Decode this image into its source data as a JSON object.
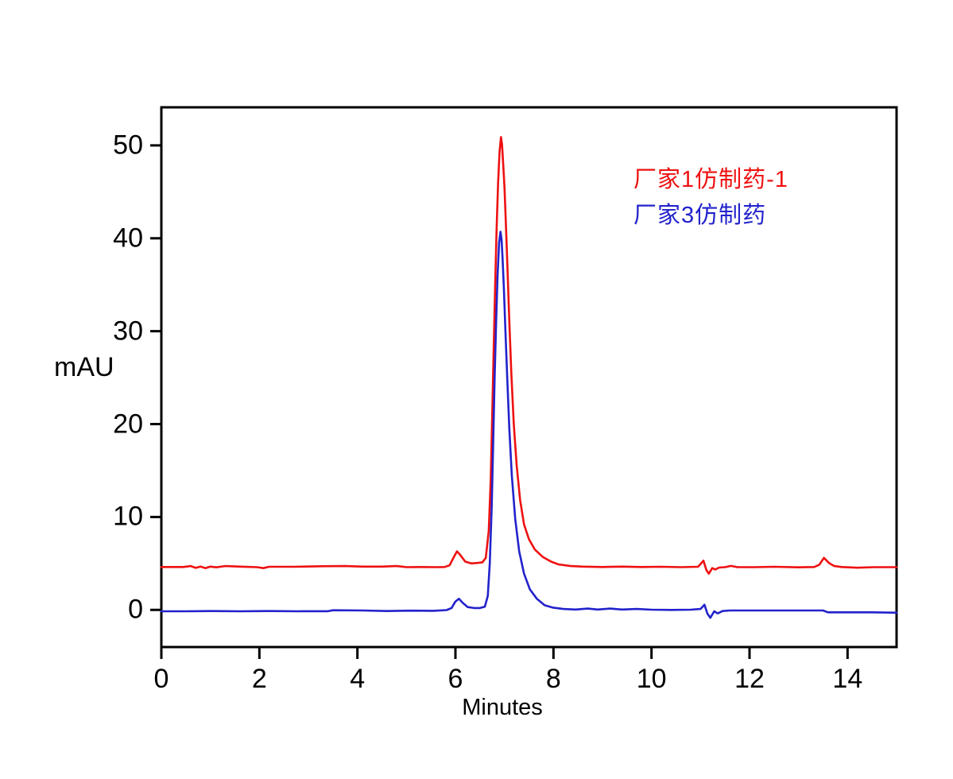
{
  "colors": {
    "background": "#ffffff",
    "axis": "#000000",
    "series1": "#ee1111",
    "series2": "#2222cc"
  },
  "chart_data": {
    "type": "line",
    "title": "",
    "xlabel": "Minutes",
    "ylabel": "mAU",
    "xlim": [
      0,
      15
    ],
    "ylim": [
      -4.0,
      54.1
    ],
    "x_ticks": [
      0,
      2,
      4,
      6,
      8,
      10,
      12,
      14
    ],
    "y_ticks": [
      0,
      10,
      20,
      30,
      40,
      50
    ],
    "grid": false,
    "legend_position": "upper-right-inside",
    "series": [
      {
        "name": "厂家1仿制药-1",
        "color": "#ee1111",
        "baseline": 4.6,
        "main_peak": {
          "time_min": 6.93,
          "height_mau": 50.9
        },
        "points": [
          [
            0,
            4.62
          ],
          [
            0.45,
            4.62
          ],
          [
            0.6,
            4.72
          ],
          [
            0.7,
            4.52
          ],
          [
            0.8,
            4.66
          ],
          [
            0.9,
            4.5
          ],
          [
            1.0,
            4.66
          ],
          [
            1.12,
            4.58
          ],
          [
            1.3,
            4.72
          ],
          [
            1.6,
            4.66
          ],
          [
            1.95,
            4.6
          ],
          [
            2.08,
            4.5
          ],
          [
            2.2,
            4.64
          ],
          [
            2.7,
            4.64
          ],
          [
            3.3,
            4.7
          ],
          [
            3.75,
            4.72
          ],
          [
            4.1,
            4.66
          ],
          [
            4.5,
            4.66
          ],
          [
            4.8,
            4.72
          ],
          [
            5.0,
            4.6
          ],
          [
            5.3,
            4.62
          ],
          [
            5.6,
            4.6
          ],
          [
            5.78,
            4.62
          ],
          [
            5.88,
            4.8
          ],
          [
            5.97,
            5.7
          ],
          [
            6.03,
            6.3
          ],
          [
            6.1,
            5.9
          ],
          [
            6.2,
            5.2
          ],
          [
            6.32,
            5.0
          ],
          [
            6.45,
            5.05
          ],
          [
            6.55,
            5.12
          ],
          [
            6.62,
            5.6
          ],
          [
            6.68,
            8.5
          ],
          [
            6.72,
            14
          ],
          [
            6.75,
            21
          ],
          [
            6.78,
            28
          ],
          [
            6.81,
            35
          ],
          [
            6.84,
            41
          ],
          [
            6.87,
            46
          ],
          [
            6.9,
            49.3
          ],
          [
            6.93,
            50.9
          ],
          [
            6.95,
            50.1
          ],
          [
            6.97,
            48.4
          ],
          [
            7.0,
            45.5
          ],
          [
            7.03,
            41.5
          ],
          [
            7.06,
            37
          ],
          [
            7.1,
            31
          ],
          [
            7.14,
            25.5
          ],
          [
            7.19,
            20
          ],
          [
            7.25,
            15.5
          ],
          [
            7.32,
            11.8
          ],
          [
            7.4,
            9.2
          ],
          [
            7.5,
            7.6
          ],
          [
            7.62,
            6.5
          ],
          [
            7.78,
            5.7
          ],
          [
            7.95,
            5.2
          ],
          [
            8.1,
            4.9
          ],
          [
            8.35,
            4.72
          ],
          [
            8.6,
            4.66
          ],
          [
            9.0,
            4.62
          ],
          [
            9.4,
            4.66
          ],
          [
            9.8,
            4.62
          ],
          [
            10.2,
            4.64
          ],
          [
            10.6,
            4.6
          ],
          [
            10.95,
            4.64
          ],
          [
            11.06,
            5.3
          ],
          [
            11.12,
            4.3
          ],
          [
            11.17,
            3.9
          ],
          [
            11.24,
            4.5
          ],
          [
            11.3,
            4.35
          ],
          [
            11.38,
            4.56
          ],
          [
            11.5,
            4.6
          ],
          [
            11.62,
            4.74
          ],
          [
            11.75,
            4.6
          ],
          [
            12.1,
            4.6
          ],
          [
            12.5,
            4.64
          ],
          [
            13.0,
            4.58
          ],
          [
            13.32,
            4.62
          ],
          [
            13.42,
            4.85
          ],
          [
            13.52,
            5.6
          ],
          [
            13.62,
            5.05
          ],
          [
            13.73,
            4.72
          ],
          [
            13.88,
            4.62
          ],
          [
            14.2,
            4.54
          ],
          [
            14.55,
            4.6
          ],
          [
            15,
            4.6
          ]
        ]
      },
      {
        "name": "厂家3仿制药",
        "color": "#2222cc",
        "baseline": -0.1,
        "main_peak": {
          "time_min": 6.92,
          "height_mau": 40.7
        },
        "points": [
          [
            0,
            -0.15
          ],
          [
            0.5,
            -0.15
          ],
          [
            1.0,
            -0.12
          ],
          [
            1.6,
            -0.15
          ],
          [
            2.2,
            -0.12
          ],
          [
            2.8,
            -0.15
          ],
          [
            3.4,
            -0.14
          ],
          [
            3.5,
            -0.04
          ],
          [
            4.1,
            -0.06
          ],
          [
            4.6,
            -0.12
          ],
          [
            5.1,
            -0.08
          ],
          [
            5.55,
            -0.1
          ],
          [
            5.82,
            -0.02
          ],
          [
            5.92,
            0.2
          ],
          [
            6.0,
            0.9
          ],
          [
            6.07,
            1.2
          ],
          [
            6.15,
            0.75
          ],
          [
            6.25,
            0.3
          ],
          [
            6.38,
            0.2
          ],
          [
            6.5,
            0.2
          ],
          [
            6.6,
            0.35
          ],
          [
            6.66,
            1.5
          ],
          [
            6.7,
            5
          ],
          [
            6.74,
            11
          ],
          [
            6.77,
            18
          ],
          [
            6.8,
            25
          ],
          [
            6.83,
            31
          ],
          [
            6.86,
            36
          ],
          [
            6.89,
            39.5
          ],
          [
            6.92,
            40.7
          ],
          [
            6.94,
            39.9
          ],
          [
            6.96,
            38
          ],
          [
            6.99,
            34.5
          ],
          [
            7.02,
            30
          ],
          [
            7.06,
            24.5
          ],
          [
            7.1,
            19.5
          ],
          [
            7.15,
            14.5
          ],
          [
            7.22,
            9.8
          ],
          [
            7.3,
            6.3
          ],
          [
            7.4,
            3.9
          ],
          [
            7.52,
            2.2
          ],
          [
            7.66,
            1.2
          ],
          [
            7.82,
            0.5
          ],
          [
            7.98,
            0.25
          ],
          [
            8.2,
            0.1
          ],
          [
            8.45,
            0.04
          ],
          [
            8.7,
            0.14
          ],
          [
            8.9,
            0.04
          ],
          [
            9.15,
            0.14
          ],
          [
            9.4,
            0.04
          ],
          [
            9.7,
            0.1
          ],
          [
            10.0,
            0.02
          ],
          [
            10.4,
            0.0
          ],
          [
            10.8,
            0.02
          ],
          [
            11.0,
            0.1
          ],
          [
            11.08,
            0.55
          ],
          [
            11.14,
            -0.4
          ],
          [
            11.2,
            -0.85
          ],
          [
            11.28,
            -0.15
          ],
          [
            11.35,
            -0.38
          ],
          [
            11.45,
            -0.12
          ],
          [
            11.6,
            -0.06
          ],
          [
            12.0,
            -0.06
          ],
          [
            12.5,
            -0.06
          ],
          [
            13.0,
            -0.06
          ],
          [
            13.5,
            -0.06
          ],
          [
            13.6,
            -0.26
          ],
          [
            14.0,
            -0.26
          ],
          [
            14.5,
            -0.26
          ],
          [
            15,
            -0.3
          ]
        ]
      }
    ]
  }
}
